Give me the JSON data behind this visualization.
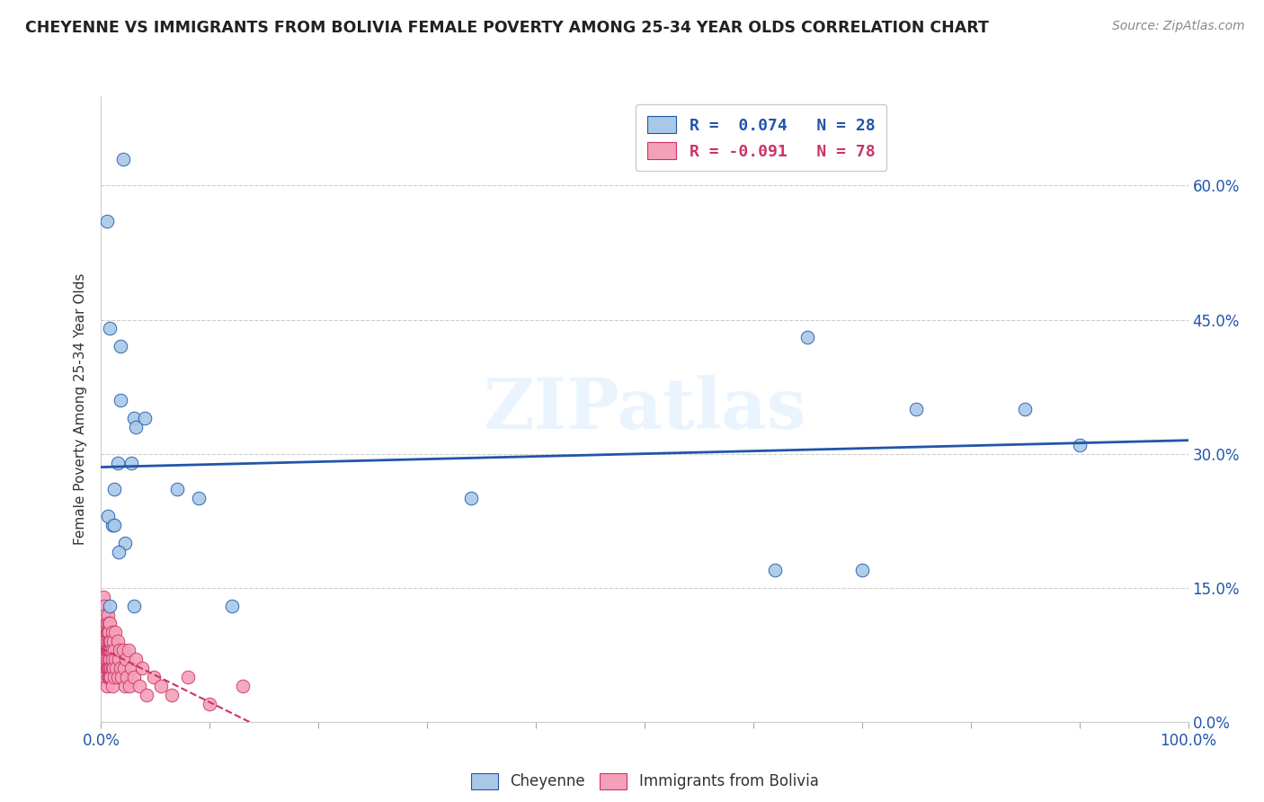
{
  "title": "CHEYENNE VS IMMIGRANTS FROM BOLIVIA FEMALE POVERTY AMONG 25-34 YEAR OLDS CORRELATION CHART",
  "source": "Source: ZipAtlas.com",
  "ylabel": "Female Poverty Among 25-34 Year Olds",
  "xlabel_legend1": "Cheyenne",
  "xlabel_legend2": "Immigrants from Bolivia",
  "r1": 0.074,
  "n1": 28,
  "r2": -0.091,
  "n2": 78,
  "color1": "#a8c8e8",
  "color2": "#f4a0b8",
  "line_color1": "#2255aa",
  "line_color2": "#cc3366",
  "watermark": "ZIPatlas",
  "xlim": [
    0.0,
    1.0
  ],
  "ylim": [
    0.0,
    0.7
  ],
  "xtick_positions": [
    0.0,
    1.0
  ],
  "xtick_labels": [
    "0.0%",
    "100.0%"
  ],
  "yticks": [
    0.0,
    0.15,
    0.3,
    0.45,
    0.6
  ],
  "ytick_labels": [
    "0.0%",
    "15.0%",
    "30.0%",
    "45.0%",
    "60.0%"
  ],
  "cheyenne_x": [
    0.02,
    0.005,
    0.008,
    0.018,
    0.018,
    0.03,
    0.032,
    0.04,
    0.028,
    0.015,
    0.012,
    0.07,
    0.09,
    0.34,
    0.62,
    0.7,
    0.75,
    0.85,
    0.9,
    0.65,
    0.022,
    0.01,
    0.006,
    0.016,
    0.12,
    0.03,
    0.008,
    0.012
  ],
  "cheyenne_y": [
    0.63,
    0.56,
    0.44,
    0.42,
    0.36,
    0.34,
    0.33,
    0.34,
    0.29,
    0.29,
    0.26,
    0.26,
    0.25,
    0.25,
    0.17,
    0.17,
    0.35,
    0.35,
    0.31,
    0.43,
    0.2,
    0.22,
    0.23,
    0.19,
    0.13,
    0.13,
    0.13,
    0.22
  ],
  "bolivia_x": [
    0.002,
    0.002,
    0.003,
    0.003,
    0.003,
    0.003,
    0.004,
    0.004,
    0.004,
    0.004,
    0.004,
    0.004,
    0.005,
    0.005,
    0.005,
    0.005,
    0.005,
    0.005,
    0.005,
    0.006,
    0.006,
    0.006,
    0.006,
    0.006,
    0.007,
    0.007,
    0.007,
    0.007,
    0.007,
    0.007,
    0.007,
    0.008,
    0.008,
    0.008,
    0.008,
    0.008,
    0.008,
    0.009,
    0.009,
    0.009,
    0.009,
    0.01,
    0.01,
    0.01,
    0.01,
    0.01,
    0.011,
    0.011,
    0.012,
    0.012,
    0.013,
    0.013,
    0.014,
    0.015,
    0.015,
    0.016,
    0.017,
    0.018,
    0.019,
    0.02,
    0.021,
    0.022,
    0.023,
    0.024,
    0.025,
    0.026,
    0.028,
    0.03,
    0.032,
    0.035,
    0.038,
    0.042,
    0.048,
    0.055,
    0.065,
    0.08,
    0.1,
    0.13
  ],
  "bolivia_y": [
    0.14,
    0.1,
    0.13,
    0.09,
    0.11,
    0.08,
    0.12,
    0.07,
    0.1,
    0.06,
    0.09,
    0.05,
    0.11,
    0.08,
    0.06,
    0.1,
    0.07,
    0.04,
    0.09,
    0.12,
    0.08,
    0.06,
    0.1,
    0.05,
    0.09,
    0.07,
    0.11,
    0.06,
    0.08,
    0.05,
    0.1,
    0.09,
    0.07,
    0.05,
    0.08,
    0.06,
    0.11,
    0.08,
    0.06,
    0.09,
    0.05,
    0.1,
    0.08,
    0.06,
    0.04,
    0.07,
    0.09,
    0.06,
    0.08,
    0.05,
    0.07,
    0.1,
    0.06,
    0.09,
    0.05,
    0.07,
    0.08,
    0.06,
    0.05,
    0.08,
    0.06,
    0.04,
    0.07,
    0.05,
    0.08,
    0.04,
    0.06,
    0.05,
    0.07,
    0.04,
    0.06,
    0.03,
    0.05,
    0.04,
    0.03,
    0.05,
    0.02,
    0.04
  ],
  "bolivia_regression_end_x": 0.4,
  "cheyenne_regression_start_y": 0.285,
  "cheyenne_regression_end_y": 0.315
}
